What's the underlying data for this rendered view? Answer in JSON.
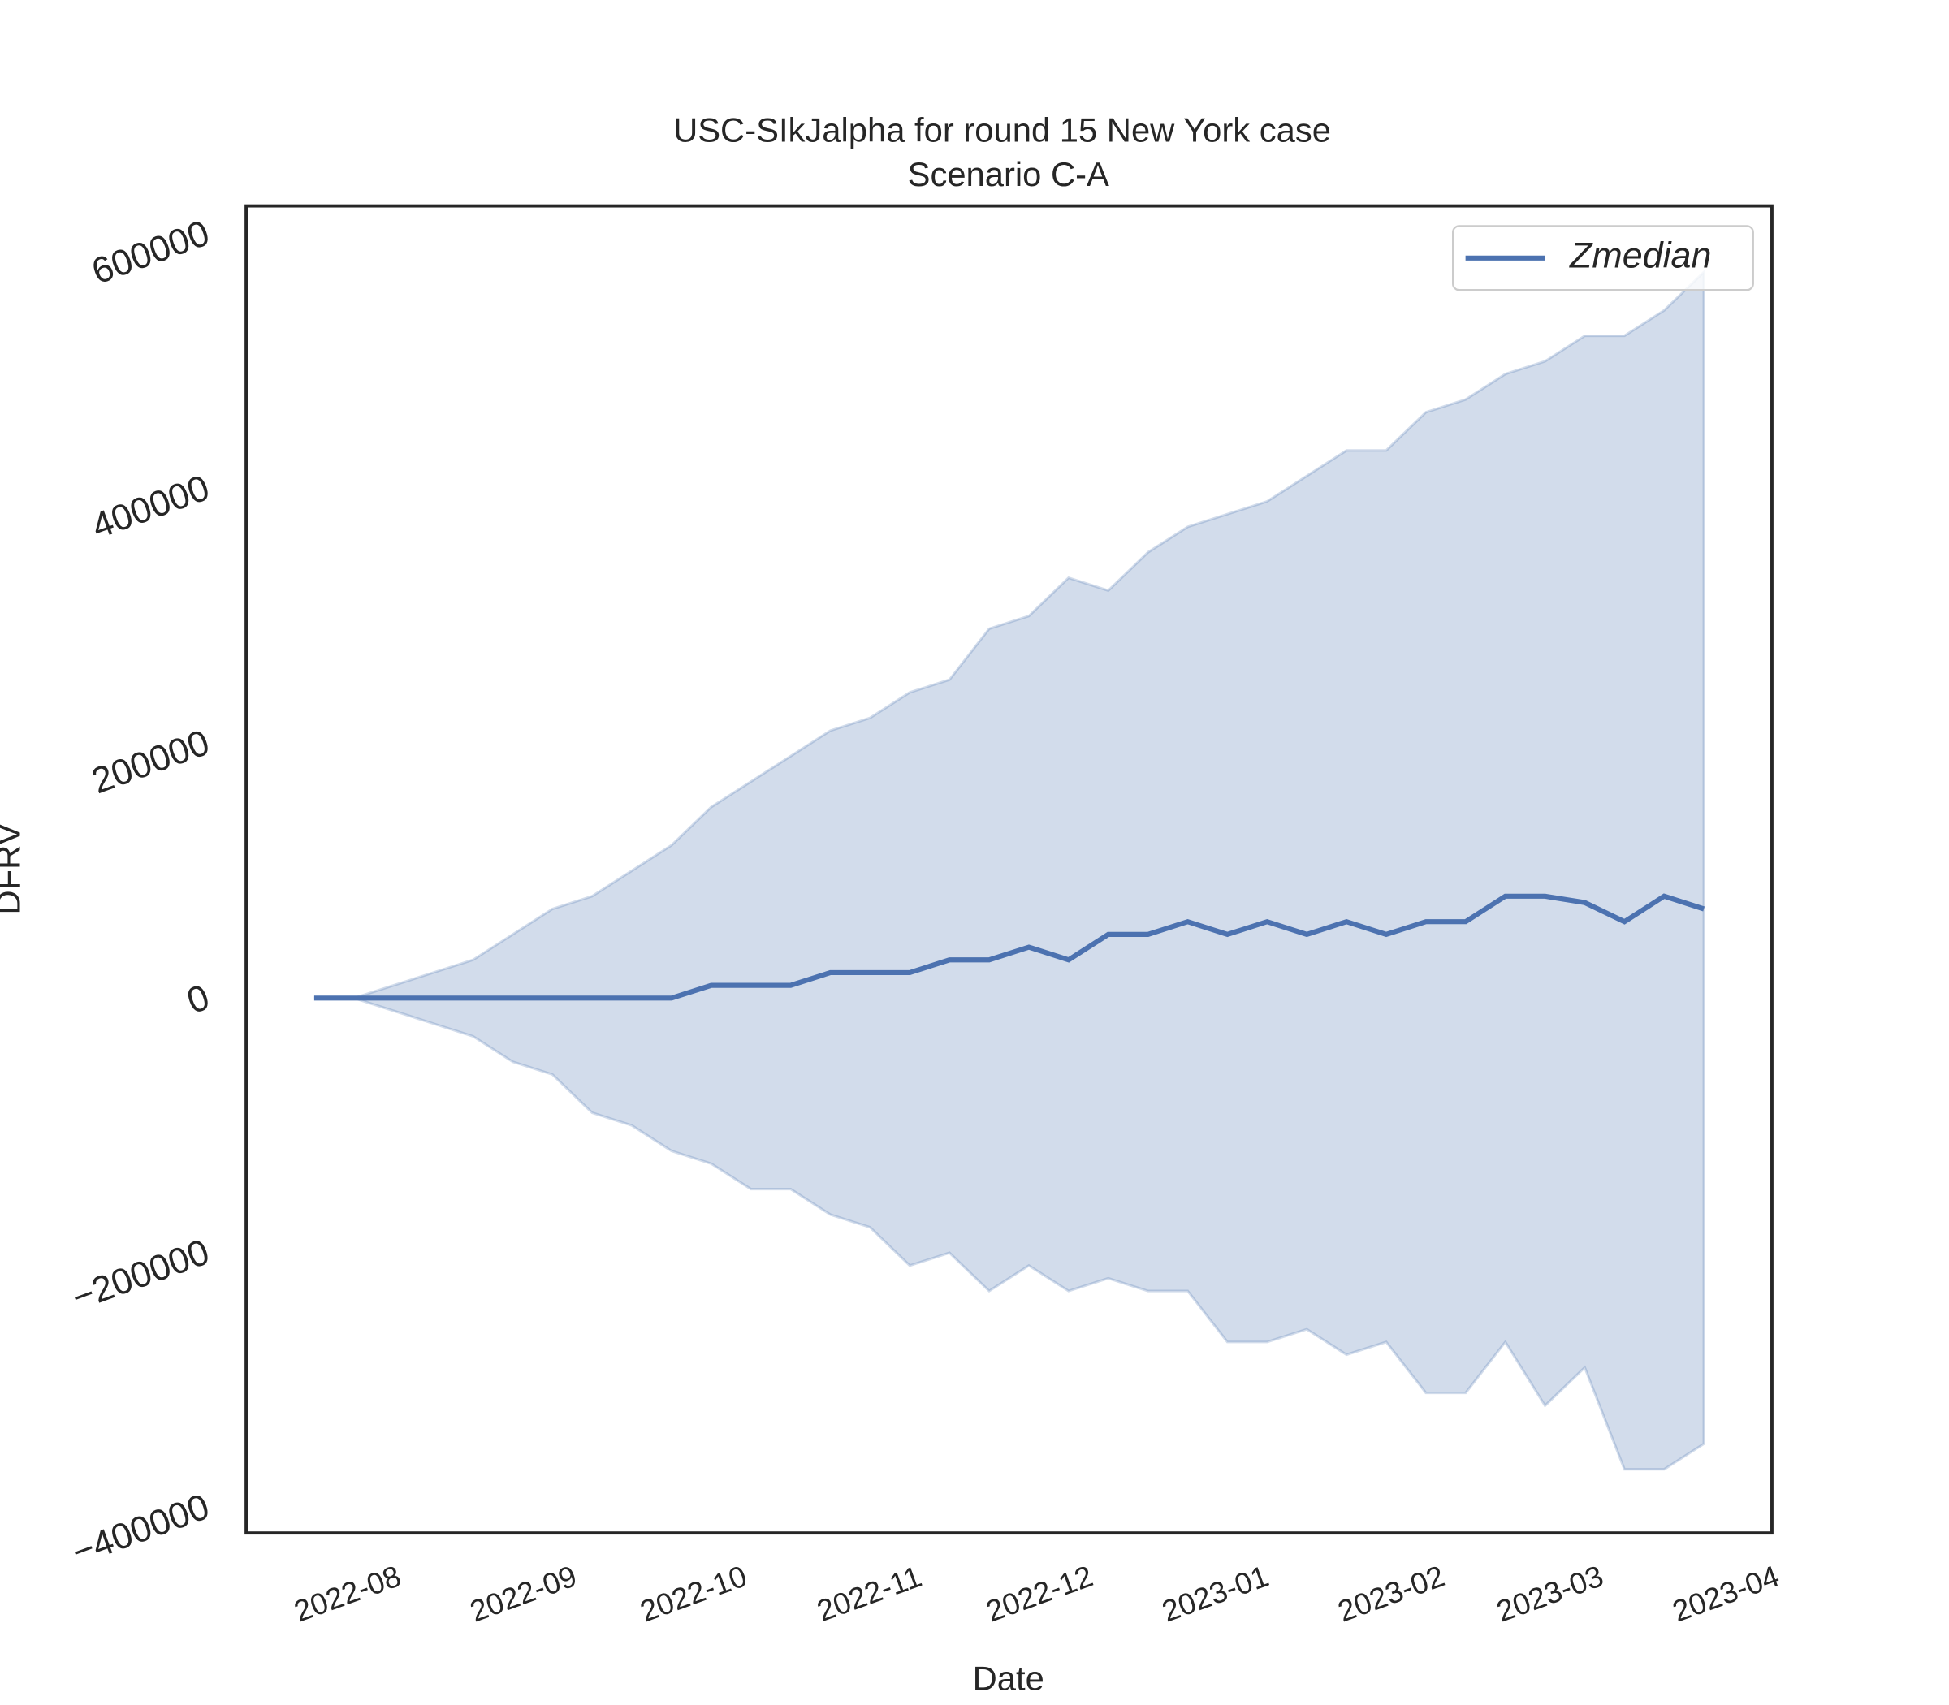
{
  "chart_data": {
    "type": "line",
    "title": "USC-SIkJalpha for round 15 New York case",
    "subtitle": "Scenario C-A",
    "x_label": "Date",
    "y_label": "DFRV",
    "x": [
      "2022-07-26",
      "2022-08-02",
      "2022-08-09",
      "2022-08-16",
      "2022-08-23",
      "2022-08-30",
      "2022-09-06",
      "2022-09-13",
      "2022-09-20",
      "2022-09-27",
      "2022-10-04",
      "2022-10-11",
      "2022-10-18",
      "2022-10-25",
      "2022-11-01",
      "2022-11-08",
      "2022-11-15",
      "2022-11-22",
      "2022-11-29",
      "2022-12-06",
      "2022-12-13",
      "2022-12-20",
      "2022-12-27",
      "2023-01-03",
      "2023-01-10",
      "2023-01-17",
      "2023-01-24",
      "2023-01-31",
      "2023-02-07",
      "2023-02-14",
      "2023-02-21",
      "2023-02-28",
      "2023-03-07",
      "2023-03-14",
      "2023-03-21",
      "2023-03-28"
    ],
    "series": [
      {
        "name": "Zmedian",
        "color": "#4c72b0",
        "values": [
          0,
          0,
          0,
          0,
          0,
          0,
          0,
          0,
          0,
          0,
          10000,
          10000,
          10000,
          20000,
          20000,
          20000,
          30000,
          30000,
          40000,
          30000,
          50000,
          50000,
          60000,
          50000,
          60000,
          50000,
          60000,
          50000,
          60000,
          60000,
          80000,
          80000,
          75000,
          60000,
          80000,
          70000
        ]
      }
    ],
    "band": {
      "color": "#4c72b0",
      "upper": [
        0,
        0,
        10000,
        20000,
        30000,
        50000,
        70000,
        80000,
        100000,
        120000,
        150000,
        170000,
        190000,
        210000,
        220000,
        240000,
        250000,
        290000,
        300000,
        330000,
        320000,
        350000,
        370000,
        380000,
        390000,
        410000,
        430000,
        430000,
        460000,
        470000,
        490000,
        500000,
        520000,
        520000,
        540000,
        570000
      ],
      "lower": [
        0,
        0,
        -10000,
        -20000,
        -30000,
        -50000,
        -60000,
        -90000,
        -100000,
        -120000,
        -130000,
        -150000,
        -150000,
        -170000,
        -180000,
        -210000,
        -200000,
        -230000,
        -210000,
        -230000,
        -220000,
        -230000,
        -230000,
        -270000,
        -270000,
        -260000,
        -280000,
        -270000,
        -310000,
        -310000,
        -270000,
        -320000,
        -290000,
        -370000,
        -370000,
        -350000
      ]
    },
    "xlim": [
      "2022-07-14",
      "2023-04-09"
    ],
    "xticks": [
      {
        "value": "2022-08-01",
        "label": "2022-08"
      },
      {
        "value": "2022-09-01",
        "label": "2022-09"
      },
      {
        "value": "2022-10-01",
        "label": "2022-10"
      },
      {
        "value": "2022-11-01",
        "label": "2022-11"
      },
      {
        "value": "2022-12-01",
        "label": "2022-12"
      },
      {
        "value": "2023-01-01",
        "label": "2023-01"
      },
      {
        "value": "2023-02-01",
        "label": "2023-02"
      },
      {
        "value": "2023-03-01",
        "label": "2023-03"
      },
      {
        "value": "2023-04-01",
        "label": "2023-04"
      }
    ],
    "ylim": [
      -420000,
      622000
    ],
    "yticks": [
      {
        "value": -400000,
        "label": "−400000"
      },
      {
        "value": -200000,
        "label": "−200000"
      },
      0,
      200000,
      400000,
      600000
    ],
    "legend": "upper right",
    "grid": false
  }
}
